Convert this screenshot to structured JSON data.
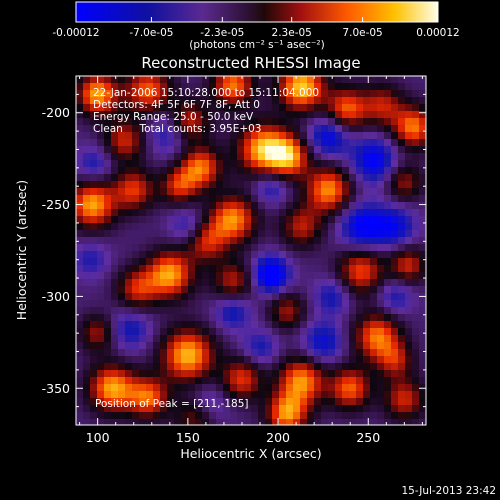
{
  "chart_data": {
    "type": "heatmap",
    "title": "Reconstructed RHESSI Image",
    "xlabel": "Heliocentric X (arcsec)",
    "ylabel": "Heliocentric Y (arcsec)",
    "xlim": [
      88,
      282
    ],
    "ylim": [
      -370,
      -180
    ],
    "x_ticks": [
      100,
      150,
      200,
      250
    ],
    "y_ticks": [
      -200,
      -250,
      -300,
      -350
    ],
    "colorbar": {
      "min": -0.00012,
      "max": 0.00012,
      "tick_labels": [
        "-0.00012",
        "-7.0e-05",
        "-2.3e-05",
        "2.3e-05",
        "7.0e-05",
        "0.00012"
      ],
      "tick_values": [
        -0.00012,
        -7e-05,
        -2.3e-05,
        2.3e-05,
        7e-05,
        0.00012
      ],
      "units_label": "(photons cm⁻² s⁻¹ asec⁻²)"
    },
    "annotations": [
      "22-Jan-2006 15:10:28.000 to 15:11:04.000",
      "Detectors: 4F 5F 6F 7F 8F, Att 0",
      "Energy Range: 25.0 - 50.0 keV",
      "Clean     Total counts: 3.95E+03"
    ],
    "peak_label": "Position of Peak = [211,-185]",
    "peak": [
      211,
      -185
    ],
    "timestamp": "15-Jul-2013 23:42",
    "blobs": [
      {
        "x": 100,
        "y": -190,
        "v": 0.9,
        "s": 8
      },
      {
        "x": 128,
        "y": -188,
        "v": 0.75,
        "s": 9
      },
      {
        "x": 150,
        "y": -205,
        "v": 0.7,
        "s": 8
      },
      {
        "x": 175,
        "y": -185,
        "v": 0.8,
        "s": 8
      },
      {
        "x": 213,
        "y": -186,
        "v": 1.0,
        "s": 9
      },
      {
        "x": 238,
        "y": -198,
        "v": 0.75,
        "s": 8
      },
      {
        "x": 258,
        "y": -196,
        "v": 0.55,
        "s": 8
      },
      {
        "x": 275,
        "y": -208,
        "v": 0.8,
        "s": 8
      },
      {
        "x": 115,
        "y": -215,
        "v": 0.6,
        "s": 8
      },
      {
        "x": 192,
        "y": -220,
        "v": 0.95,
        "s": 10
      },
      {
        "x": 206,
        "y": -224,
        "v": 0.8,
        "s": 8
      },
      {
        "x": 157,
        "y": -230,
        "v": 0.8,
        "s": 8
      },
      {
        "x": 145,
        "y": -240,
        "v": 0.6,
        "s": 7
      },
      {
        "x": 97,
        "y": -250,
        "v": 0.9,
        "s": 9
      },
      {
        "x": 120,
        "y": -242,
        "v": 0.65,
        "s": 8
      },
      {
        "x": 228,
        "y": -242,
        "v": 0.85,
        "s": 9
      },
      {
        "x": 270,
        "y": -238,
        "v": 0.5,
        "s": 7
      },
      {
        "x": 175,
        "y": -258,
        "v": 0.85,
        "s": 9
      },
      {
        "x": 160,
        "y": -270,
        "v": 0.6,
        "s": 8
      },
      {
        "x": 213,
        "y": -262,
        "v": 0.55,
        "s": 8
      },
      {
        "x": 140,
        "y": -288,
        "v": 0.9,
        "s": 9
      },
      {
        "x": 122,
        "y": -296,
        "v": 0.6,
        "s": 8
      },
      {
        "x": 175,
        "y": -292,
        "v": 0.55,
        "s": 8
      },
      {
        "x": 246,
        "y": -286,
        "v": 0.7,
        "s": 9
      },
      {
        "x": 272,
        "y": -283,
        "v": 0.6,
        "s": 7
      },
      {
        "x": 205,
        "y": -308,
        "v": 0.5,
        "s": 7
      },
      {
        "x": 255,
        "y": -322,
        "v": 0.8,
        "s": 9
      },
      {
        "x": 100,
        "y": -320,
        "v": 0.5,
        "s": 7
      },
      {
        "x": 150,
        "y": -332,
        "v": 0.95,
        "s": 10
      },
      {
        "x": 108,
        "y": -350,
        "v": 0.9,
        "s": 9
      },
      {
        "x": 128,
        "y": -355,
        "v": 0.75,
        "s": 8
      },
      {
        "x": 180,
        "y": -345,
        "v": 0.65,
        "s": 8
      },
      {
        "x": 213,
        "y": -346,
        "v": 0.85,
        "s": 9
      },
      {
        "x": 240,
        "y": -350,
        "v": 0.75,
        "s": 8
      },
      {
        "x": 205,
        "y": -364,
        "v": 0.85,
        "s": 8
      },
      {
        "x": 270,
        "y": -356,
        "v": 0.6,
        "s": 8
      },
      {
        "x": 265,
        "y": -335,
        "v": 0.5,
        "s": 7
      },
      {
        "x": 155,
        "y": -365,
        "v": 0.6,
        "s": 8
      },
      {
        "x": 140,
        "y": -210,
        "v": -0.55,
        "s": 9
      },
      {
        "x": 228,
        "y": -213,
        "v": -0.7,
        "s": 8
      },
      {
        "x": 253,
        "y": -226,
        "v": -0.75,
        "s": 9
      },
      {
        "x": 196,
        "y": -240,
        "v": -0.5,
        "s": 7
      },
      {
        "x": 98,
        "y": -228,
        "v": -0.45,
        "s": 7
      },
      {
        "x": 150,
        "y": -262,
        "v": -0.45,
        "s": 7
      },
      {
        "x": 247,
        "y": -262,
        "v": -0.8,
        "s": 9
      },
      {
        "x": 265,
        "y": -262,
        "v": -0.6,
        "s": 8
      },
      {
        "x": 196,
        "y": -288,
        "v": -1.0,
        "s": 7
      },
      {
        "x": 230,
        "y": -300,
        "v": -0.5,
        "s": 7
      },
      {
        "x": 175,
        "y": -308,
        "v": -0.55,
        "s": 7
      },
      {
        "x": 118,
        "y": -318,
        "v": -0.5,
        "s": 8
      },
      {
        "x": 225,
        "y": -325,
        "v": -0.6,
        "s": 8
      },
      {
        "x": 190,
        "y": -328,
        "v": -0.45,
        "s": 7
      },
      {
        "x": 160,
        "y": -360,
        "v": -0.55,
        "s": 8
      },
      {
        "x": 265,
        "y": -300,
        "v": -0.45,
        "s": 7
      },
      {
        "x": 96,
        "y": -280,
        "v": -0.4,
        "s": 7
      }
    ]
  }
}
